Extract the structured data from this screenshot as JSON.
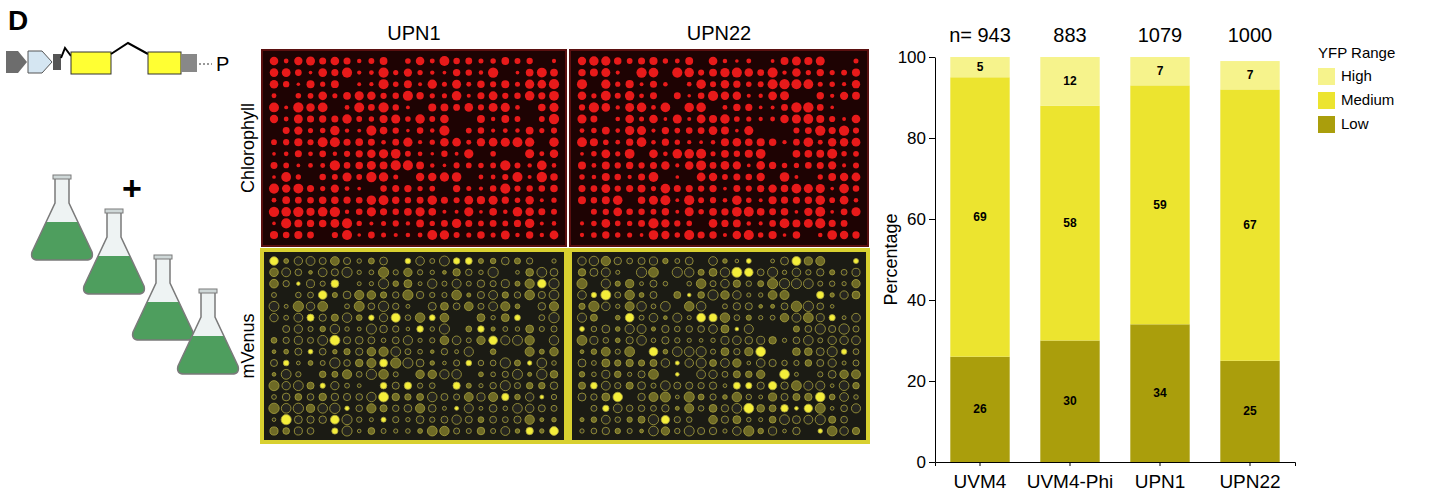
{
  "figure": {
    "panel_label": "D",
    "plus": "+",
    "construct_label": "P",
    "image_columns": [
      "UPN1",
      "UPN22"
    ],
    "image_rows": [
      "Chlorophyll",
      "mVenus"
    ]
  },
  "chart_data": {
    "type": "bar",
    "stacked": true,
    "data_labels": true,
    "grid": false,
    "legend": "right",
    "legend_title": "YFP Range",
    "y_label": "Percentage",
    "categories": [
      "UVM4",
      "UVM4-Phi",
      "UPN1",
      "UPN22"
    ],
    "n": [
      943,
      883,
      1079,
      1000
    ],
    "n_prefix": "n= ",
    "series": [
      {
        "name": "Low",
        "color": "#aa9e0c",
        "values": [
          26,
          30,
          34,
          25
        ]
      },
      {
        "name": "Medium",
        "color": "#ece42f",
        "values": [
          69,
          58,
          59,
          67
        ]
      },
      {
        "name": "High",
        "color": "#f6f38c",
        "values": [
          5,
          12,
          7,
          7
        ]
      }
    ],
    "ylim": [
      0,
      100
    ],
    "yticks": [
      0,
      20,
      40,
      60,
      80,
      100
    ]
  }
}
